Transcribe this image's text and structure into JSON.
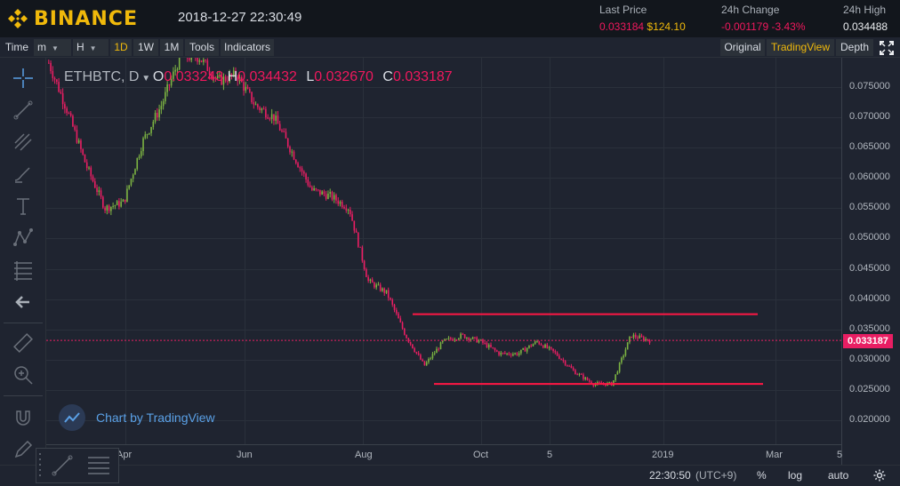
{
  "header": {
    "brand": "BINANCE",
    "datetime": "2018-12-27 22:30:49",
    "last_price_label": "Last Price",
    "last_price_btc": "0.033184",
    "last_price_usd": "$124.10",
    "change_label": "24h Change",
    "change_abs": "-0.001179",
    "change_pct": "-3.43%",
    "high_label": "24h High",
    "high_value": "0.034488"
  },
  "toolbar": {
    "time_label": "Time",
    "minutes_label": "m",
    "hours_label": "H",
    "intervals": [
      "1D",
      "1W",
      "1M"
    ],
    "active_interval": "1D",
    "tools_label": "Tools",
    "indicators_label": "Indicators",
    "views": [
      "Original",
      "TradingView",
      "Depth"
    ],
    "active_view": "TradingView"
  },
  "legend": {
    "symbol": "ETHBTC, D",
    "open_label": "O",
    "open_value": "0.033243",
    "high_label": "H",
    "high_value": "0.034432",
    "low_label": "L",
    "low_value": "0.032670",
    "close_label": "C",
    "close_value": "0.033187"
  },
  "watermark": "Chart by TradingView",
  "price_ticks": [
    "0.075000",
    "0.070000",
    "0.065000",
    "0.060000",
    "0.055000",
    "0.050000",
    "0.045000",
    "0.040000",
    "0.035000",
    "0.030000",
    "0.025000",
    "0.020000"
  ],
  "last_price_tag": "0.033187",
  "time_ticks": [
    "Apr",
    "Jun",
    "Aug",
    "Oct",
    "5",
    "2019",
    "Mar",
    "5"
  ],
  "bottom": {
    "clock": "22:30:50",
    "timezone": "(UTC+9)",
    "percent": "%",
    "log": "log",
    "auto": "auto"
  },
  "colors": {
    "up": "#7cb342",
    "down": "#e91e63",
    "line": "#ff1744",
    "accent": "#f0b90b",
    "background": "#1f2430"
  },
  "chart_data": {
    "type": "candlestick",
    "symbol": "ETHBTC",
    "interval": "1D",
    "ylim": [
      0.018,
      0.078
    ],
    "price_ticks": [
      0.075,
      0.07,
      0.065,
      0.06,
      0.055,
      0.05,
      0.045,
      0.04,
      0.035,
      0.03,
      0.025,
      0.02
    ],
    "last_close": 0.033187,
    "approx_close_path": [
      [
        "Mar",
        0.079
      ],
      [
        "Mar",
        0.071
      ],
      [
        "Apr",
        0.062
      ],
      [
        "Apr",
        0.055
      ],
      [
        "Apr",
        0.056
      ],
      [
        "Apr",
        0.066
      ],
      [
        "May",
        0.072
      ],
      [
        "May",
        0.08
      ],
      [
        "Jun",
        0.08
      ],
      [
        "Jun",
        0.076
      ],
      [
        "Jul",
        0.077
      ],
      [
        "Jul",
        0.072
      ],
      [
        "Jul",
        0.07
      ],
      [
        "Jul",
        0.064
      ],
      [
        "Aug",
        0.058
      ],
      [
        "Aug",
        0.057
      ],
      [
        "Aug",
        0.055
      ],
      [
        "Aug",
        0.043
      ],
      [
        "Sep",
        0.041
      ],
      [
        "Sep",
        0.034
      ],
      [
        "Sep",
        0.029
      ],
      [
        "Sep",
        0.033
      ],
      [
        "Oct",
        0.034
      ],
      [
        "Oct",
        0.033
      ],
      [
        "Oct",
        0.031
      ],
      [
        "Nov",
        0.031
      ],
      [
        "Nov",
        0.033
      ],
      [
        "Nov",
        0.031
      ],
      [
        "Dec",
        0.028
      ],
      [
        "Dec",
        0.026
      ],
      [
        "Dec",
        0.026
      ],
      [
        "Dec",
        0.034
      ],
      [
        "Dec",
        0.0332
      ]
    ],
    "horizontal_levels": [
      0.0375,
      0.026
    ]
  }
}
